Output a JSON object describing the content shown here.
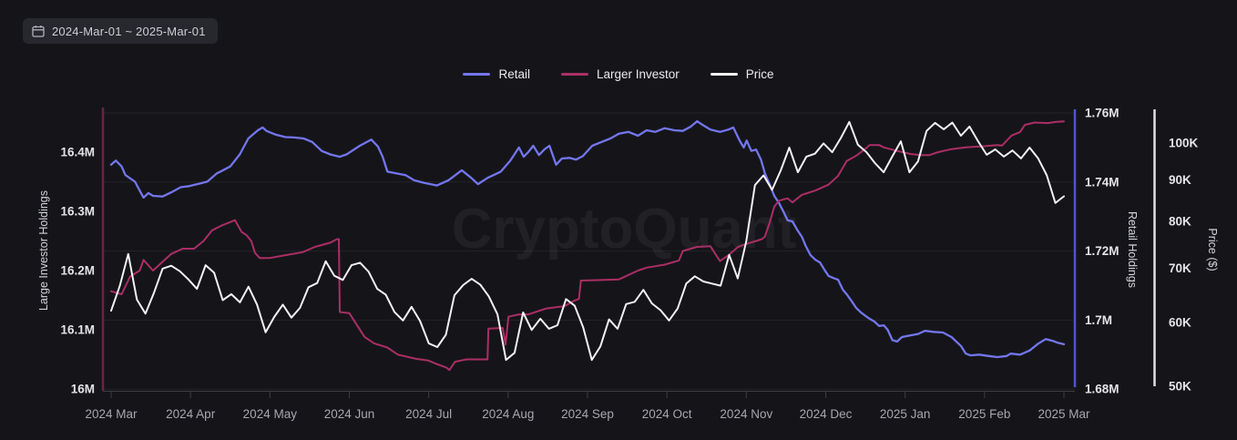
{
  "toolbar": {
    "date_range": "2024-Mar-01 ~ 2025-Mar-01"
  },
  "watermark": "CryptoQuant",
  "legend": {
    "items": [
      {
        "label": "Retail",
        "color": "#7376ee"
      },
      {
        "label": "Larger Investor",
        "color": "#a93067"
      },
      {
        "label": "Price",
        "color": "#f2f2f4"
      }
    ]
  },
  "colors": {
    "background": "#151519",
    "grid": "#232329",
    "x_axis": "#3c3d44",
    "x_label": "#a6a7ae",
    "y_label": "#e4e4e8",
    "retail_line": "#7376ee",
    "retail_spine": "#4f55d4",
    "investor_line": "#ab2e66",
    "investor_spine": "#70204b",
    "price_line": "#f2f2f4",
    "price_spine": "#e0e0e3",
    "watermark": "rgba(255,255,255,0.055)"
  },
  "chart_data": {
    "type": "line",
    "x_range": [
      "2024-Mar-01",
      "2025-Mar-01"
    ],
    "x_tick_labels": [
      "2024 Mar",
      "2024 Apr",
      "2024 May",
      "2024 Jun",
      "2024 Jul",
      "2024 Aug",
      "2024 Sep",
      "2024 Oct",
      "2024 Nov",
      "2024 Dec",
      "2025 Jan",
      "2025 Feb",
      "2025 Mar"
    ],
    "axes": {
      "left": {
        "title": "Large Investor Holdings",
        "scale": "linear",
        "range": [
          16.0,
          16.48
        ],
        "ticks": [
          {
            "value": 16.4,
            "label": "16.4M"
          },
          {
            "value": 16.3,
            "label": "16.3M"
          },
          {
            "value": 16.2,
            "label": "16.2M"
          },
          {
            "value": 16.1,
            "label": "16.1M"
          },
          {
            "value": 16.0,
            "label": "16M"
          }
        ]
      },
      "right_retail": {
        "title": "Retail Holdings",
        "scale": "linear",
        "range": [
          1.68,
          1.762
        ],
        "ticks": [
          {
            "value": 1.76,
            "label": "1.76M"
          },
          {
            "value": 1.74,
            "label": "1.74M"
          },
          {
            "value": 1.72,
            "label": "1.72M"
          },
          {
            "value": 1.7,
            "label": "1.7M"
          },
          {
            "value": 1.68,
            "label": "1.68M"
          }
        ]
      },
      "right_price": {
        "title": "Price ($)",
        "scale": "log",
        "range": [
          50,
          107
        ],
        "ticks": [
          {
            "value": 100,
            "label": "100K"
          },
          {
            "value": 90,
            "label": "90K"
          },
          {
            "value": 80,
            "label": "80K"
          },
          {
            "value": 70,
            "label": "70K"
          },
          {
            "value": 60,
            "label": "60K"
          },
          {
            "value": 50,
            "label": "50K"
          }
        ]
      }
    },
    "series": [
      {
        "name": "Retail",
        "axis": "retail",
        "color": "#7376ee",
        "unit": "M",
        "points": [
          [
            0,
            1.745
          ],
          [
            0.005,
            1.7462
          ],
          [
            0.011,
            1.7445
          ],
          [
            0.015,
            1.742
          ],
          [
            0.025,
            1.7401
          ],
          [
            0.03,
            1.7375
          ],
          [
            0.034,
            1.7355
          ],
          [
            0.039,
            1.7368
          ],
          [
            0.044,
            1.736
          ],
          [
            0.054,
            1.7358
          ],
          [
            0.063,
            1.737
          ],
          [
            0.073,
            1.7385
          ],
          [
            0.082,
            1.7388
          ],
          [
            0.092,
            1.7395
          ],
          [
            0.101,
            1.7401
          ],
          [
            0.111,
            1.7425
          ],
          [
            0.116,
            1.7432
          ],
          [
            0.125,
            1.7445
          ],
          [
            0.135,
            1.748
          ],
          [
            0.144,
            1.7526
          ],
          [
            0.154,
            1.755
          ],
          [
            0.159,
            1.7558
          ],
          [
            0.163,
            1.7548
          ],
          [
            0.173,
            1.7537
          ],
          [
            0.183,
            1.753
          ],
          [
            0.192,
            1.7529
          ],
          [
            0.202,
            1.7526
          ],
          [
            0.211,
            1.7516
          ],
          [
            0.221,
            1.749
          ],
          [
            0.23,
            1.748
          ],
          [
            0.24,
            1.7473
          ],
          [
            0.247,
            1.748
          ],
          [
            0.261,
            1.7505
          ],
          [
            0.273,
            1.7523
          ],
          [
            0.28,
            1.7503
          ],
          [
            0.285,
            1.7473
          ],
          [
            0.29,
            1.743
          ],
          [
            0.299,
            1.7425
          ],
          [
            0.309,
            1.742
          ],
          [
            0.318,
            1.7405
          ],
          [
            0.328,
            1.7398
          ],
          [
            0.342,
            1.739
          ],
          [
            0.354,
            1.7405
          ],
          [
            0.368,
            1.7434
          ],
          [
            0.378,
            1.7412
          ],
          [
            0.385,
            1.7394
          ],
          [
            0.395,
            1.7412
          ],
          [
            0.409,
            1.743
          ],
          [
            0.419,
            1.7462
          ],
          [
            0.428,
            1.75
          ],
          [
            0.433,
            1.7473
          ],
          [
            0.438,
            1.7487
          ],
          [
            0.443,
            1.7505
          ],
          [
            0.449,
            1.7478
          ],
          [
            0.455,
            1.7495
          ],
          [
            0.46,
            1.7505
          ],
          [
            0.467,
            1.745
          ],
          [
            0.473,
            1.7468
          ],
          [
            0.481,
            1.747
          ],
          [
            0.488,
            1.7465
          ],
          [
            0.495,
            1.7475
          ],
          [
            0.505,
            1.7505
          ],
          [
            0.514,
            1.7515
          ],
          [
            0.524,
            1.7526
          ],
          [
            0.533,
            1.754
          ],
          [
            0.543,
            1.7545
          ],
          [
            0.553,
            1.7534
          ],
          [
            0.562,
            1.755
          ],
          [
            0.571,
            1.7545
          ],
          [
            0.581,
            1.7556
          ],
          [
            0.591,
            1.755
          ],
          [
            0.6,
            1.7548
          ],
          [
            0.608,
            1.756
          ],
          [
            0.615,
            1.7576
          ],
          [
            0.621,
            1.7565
          ],
          [
            0.629,
            1.7552
          ],
          [
            0.639,
            1.7545
          ],
          [
            0.648,
            1.7552
          ],
          [
            0.653,
            1.7558
          ],
          [
            0.66,
            1.7518
          ],
          [
            0.664,
            1.75
          ],
          [
            0.667,
            1.752
          ],
          [
            0.672,
            1.749
          ],
          [
            0.677,
            1.7494
          ],
          [
            0.682,
            1.7465
          ],
          [
            0.686,
            1.7426
          ],
          [
            0.691,
            1.7394
          ],
          [
            0.696,
            1.736
          ],
          [
            0.701,
            1.7339
          ],
          [
            0.706,
            1.7312
          ],
          [
            0.71,
            1.7289
          ],
          [
            0.715,
            1.7286
          ],
          [
            0.72,
            1.7262
          ],
          [
            0.725,
            1.7241
          ],
          [
            0.729,
            1.7215
          ],
          [
            0.734,
            1.7188
          ],
          [
            0.739,
            1.7175
          ],
          [
            0.744,
            1.7167
          ],
          [
            0.749,
            1.7144
          ],
          [
            0.753,
            1.7128
          ],
          [
            0.758,
            1.7122
          ],
          [
            0.763,
            1.7117
          ],
          [
            0.768,
            1.7088
          ],
          [
            0.772,
            1.7075
          ],
          [
            0.777,
            1.7056
          ],
          [
            0.782,
            1.7035
          ],
          [
            0.787,
            1.7022
          ],
          [
            0.792,
            1.7012
          ],
          [
            0.796,
            1.7004
          ],
          [
            0.801,
            1.6996
          ],
          [
            0.806,
            1.6983
          ],
          [
            0.811,
            1.6985
          ],
          [
            0.815,
            1.6972
          ],
          [
            0.82,
            1.6942
          ],
          [
            0.825,
            1.6938
          ],
          [
            0.83,
            1.6951
          ],
          [
            0.839,
            1.6956
          ],
          [
            0.847,
            1.696
          ],
          [
            0.854,
            1.6969
          ],
          [
            0.863,
            1.6966
          ],
          [
            0.873,
            1.6964
          ],
          [
            0.882,
            1.6951
          ],
          [
            0.892,
            1.6925
          ],
          [
            0.897,
            1.6903
          ],
          [
            0.902,
            1.6898
          ],
          [
            0.911,
            1.69
          ],
          [
            0.921,
            1.6896
          ],
          [
            0.93,
            1.6893
          ],
          [
            0.94,
            1.6896
          ],
          [
            0.944,
            1.6903
          ],
          [
            0.954,
            1.69
          ],
          [
            0.964,
            1.6912
          ],
          [
            0.973,
            1.6932
          ],
          [
            0.981,
            1.6945
          ],
          [
            0.988,
            1.694
          ],
          [
            0.994,
            1.6934
          ],
          [
            1,
            1.693
          ]
        ]
      },
      {
        "name": "Larger Investor",
        "axis": "investor",
        "color": "#ab2e66",
        "unit": "M",
        "points": [
          [
            0,
            16.165
          ],
          [
            0.011,
            16.16
          ],
          [
            0.02,
            16.19
          ],
          [
            0.03,
            16.2
          ],
          [
            0.034,
            16.218
          ],
          [
            0.044,
            16.2
          ],
          [
            0.063,
            16.228
          ],
          [
            0.075,
            16.237
          ],
          [
            0.087,
            16.237
          ],
          [
            0.097,
            16.25
          ],
          [
            0.106,
            16.268
          ],
          [
            0.116,
            16.276
          ],
          [
            0.13,
            16.285
          ],
          [
            0.137,
            16.265
          ],
          [
            0.142,
            16.26
          ],
          [
            0.147,
            16.25
          ],
          [
            0.151,
            16.23
          ],
          [
            0.156,
            16.221
          ],
          [
            0.166,
            16.221
          ],
          [
            0.183,
            16.226
          ],
          [
            0.201,
            16.231
          ],
          [
            0.214,
            16.24
          ],
          [
            0.23,
            16.247
          ],
          [
            0.237,
            16.253
          ],
          [
            0.239,
            16.253
          ],
          [
            0.24,
            16.13
          ],
          [
            0.25,
            16.128
          ],
          [
            0.266,
            16.088
          ],
          [
            0.276,
            16.077
          ],
          [
            0.29,
            16.07
          ],
          [
            0.301,
            16.058
          ],
          [
            0.32,
            16.051
          ],
          [
            0.333,
            16.048
          ],
          [
            0.342,
            16.042
          ],
          [
            0.352,
            16.036
          ],
          [
            0.355,
            16.032
          ],
          [
            0.361,
            16.046
          ],
          [
            0.373,
            16.05
          ],
          [
            0.38,
            16.05
          ],
          [
            0.395,
            16.05
          ],
          [
            0.396,
            16.102
          ],
          [
            0.411,
            16.103
          ],
          [
            0.414,
            16.075
          ],
          [
            0.417,
            16.122
          ],
          [
            0.428,
            16.126
          ],
          [
            0.438,
            16.126
          ],
          [
            0.457,
            16.136
          ],
          [
            0.476,
            16.14
          ],
          [
            0.486,
            16.149
          ],
          [
            0.491,
            16.152
          ],
          [
            0.493,
            16.183
          ],
          [
            0.514,
            16.184
          ],
          [
            0.533,
            16.185
          ],
          [
            0.553,
            16.2
          ],
          [
            0.562,
            16.205
          ],
          [
            0.581,
            16.21
          ],
          [
            0.596,
            16.217
          ],
          [
            0.6,
            16.233
          ],
          [
            0.615,
            16.24
          ],
          [
            0.629,
            16.241
          ],
          [
            0.639,
            16.216
          ],
          [
            0.648,
            16.226
          ],
          [
            0.658,
            16.24
          ],
          [
            0.667,
            16.245
          ],
          [
            0.677,
            16.25
          ],
          [
            0.683,
            16.253
          ],
          [
            0.686,
            16.257
          ],
          [
            0.691,
            16.28
          ],
          [
            0.696,
            16.308
          ],
          [
            0.701,
            16.318
          ],
          [
            0.71,
            16.322
          ],
          [
            0.715,
            16.315
          ],
          [
            0.725,
            16.328
          ],
          [
            0.739,
            16.335
          ],
          [
            0.753,
            16.345
          ],
          [
            0.763,
            16.36
          ],
          [
            0.772,
            16.385
          ],
          [
            0.782,
            16.394
          ],
          [
            0.792,
            16.406
          ],
          [
            0.796,
            16.412
          ],
          [
            0.806,
            16.412
          ],
          [
            0.811,
            16.408
          ],
          [
            0.825,
            16.402
          ],
          [
            0.839,
            16.397
          ],
          [
            0.849,
            16.395
          ],
          [
            0.859,
            16.395
          ],
          [
            0.868,
            16.4
          ],
          [
            0.882,
            16.405
          ],
          [
            0.897,
            16.408
          ],
          [
            0.916,
            16.41
          ],
          [
            0.93,
            16.412
          ],
          [
            0.935,
            16.411
          ],
          [
            0.945,
            16.428
          ],
          [
            0.954,
            16.434
          ],
          [
            0.959,
            16.446
          ],
          [
            0.969,
            16.45
          ],
          [
            0.983,
            16.449
          ],
          [
            0.992,
            16.451
          ],
          [
            1,
            16.452
          ]
        ]
      },
      {
        "name": "Price",
        "axis": "price",
        "color": "#f2f2f4",
        "unit": "K",
        "values": [
          62.0,
          66.5,
          72.9,
          64.0,
          61.5,
          65.3,
          69.9,
          70.5,
          69.4,
          67.8,
          66.0,
          70.6,
          69.1,
          63.9,
          65.0,
          63.5,
          66.4,
          63.1,
          58.3,
          60.9,
          63.1,
          60.8,
          62.5,
          66.3,
          67.1,
          71.4,
          68.5,
          67.7,
          70.6,
          71.1,
          69.3,
          66.0,
          64.9,
          61.8,
          60.3,
          62.7,
          60.2,
          56.5,
          55.9,
          57.9,
          64.8,
          66.7,
          67.9,
          66.8,
          64.6,
          61.4,
          53.9,
          55.0,
          61.7,
          58.7,
          60.6,
          58.9,
          59.5,
          64.1,
          62.9,
          59.1,
          53.9,
          56.0,
          60.5,
          58.9,
          63.2,
          63.6,
          65.8,
          63.3,
          62.1,
          60.3,
          62.4,
          67.0,
          68.4,
          67.4,
          67.0,
          66.6,
          72.7,
          68.0,
          75.6,
          88.7,
          91.2,
          87.5,
          92.4,
          98.7,
          92.0,
          96.2,
          97.0,
          99.9,
          97.4,
          101.4,
          106.2,
          99.5,
          97.4,
          94.4,
          92.0,
          96.2,
          100.5,
          92.0,
          94.9,
          103.5,
          105.9,
          104.0,
          106.0,
          102.1,
          104.8,
          100.5,
          96.7,
          98.2,
          96.2,
          97.9,
          95.7,
          98.7,
          95.7,
          91.2,
          84.3,
          85.9
        ]
      }
    ]
  }
}
